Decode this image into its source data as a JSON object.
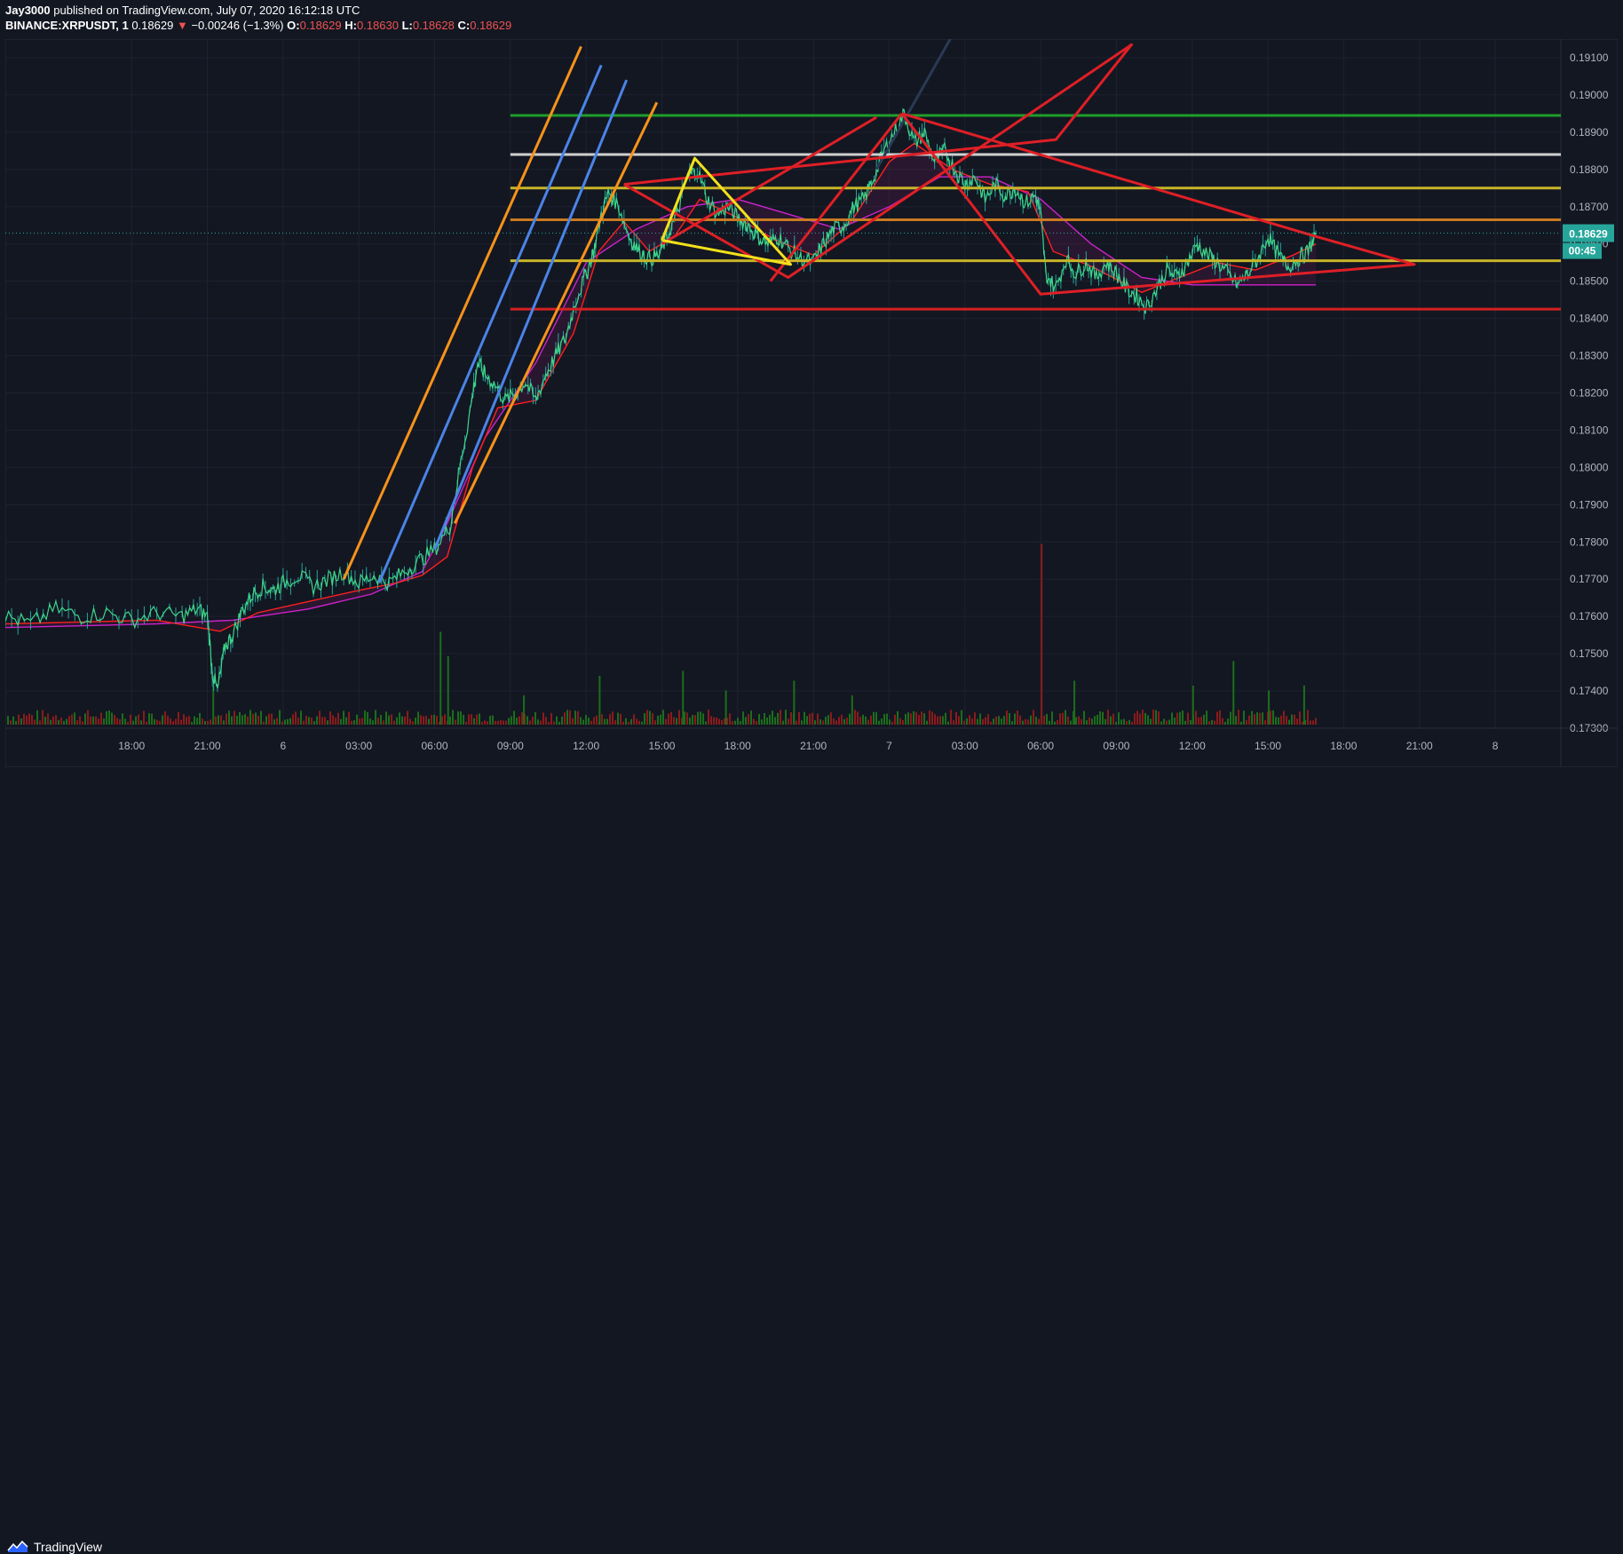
{
  "header": {
    "author": "Jay3000",
    "published": "published on TradingView.com, July 07, 2020 16:12:18 UTC",
    "symbol": "BINANCE:XRPUSDT, 1",
    "last": "0.18629",
    "change_arrow": "▼",
    "change": "−0.00246 (−1.3%)",
    "o_label": "O:",
    "o_value": "0.18629",
    "h_label": "H:",
    "h_value": "0.18630",
    "l_label": "L:",
    "l_value": "0.18628",
    "c_label": "C:",
    "c_value": "0.18629"
  },
  "colors": {
    "background": "#131722",
    "grid": "#1e2230",
    "axis_text": "#b2b5be",
    "candle_up": "#26a69a",
    "price_line": "#3ed68a",
    "ma_fast": "#ff1f1f",
    "ma_slow": "#cc22cc",
    "volume_up": "#1b6e1b",
    "volume_down": "#8b1b1b",
    "last_price_tag": "#26a69a"
  },
  "chart_data": {
    "type": "line",
    "symbol": "XRPUSDT",
    "interval": "1",
    "ylim": [
      0.173,
      0.1915
    ],
    "y_ticks": [
      "0.19100",
      "0.19000",
      "0.18900",
      "0.18800",
      "0.18700",
      "0.18600",
      "0.18500",
      "0.18400",
      "0.18300",
      "0.18200",
      "0.18100",
      "0.18000",
      "0.17900",
      "0.17800",
      "0.17700",
      "0.17600",
      "0.17500",
      "0.17400",
      "0.17300"
    ],
    "x_ticks": [
      {
        "h": -9,
        "label": "18:00"
      },
      {
        "h": -6,
        "label": "21:00"
      },
      {
        "h": -3,
        "label": "6"
      },
      {
        "h": 0,
        "label": "03:00"
      },
      {
        "h": 3,
        "label": "06:00"
      },
      {
        "h": 6,
        "label": "09:00"
      },
      {
        "h": 9,
        "label": "12:00"
      },
      {
        "h": 12,
        "label": "15:00"
      },
      {
        "h": 15,
        "label": "18:00"
      },
      {
        "h": 18,
        "label": "21:00"
      },
      {
        "h": 21,
        "label": "7"
      },
      {
        "h": 24,
        "label": "03:00"
      },
      {
        "h": 27,
        "label": "06:00"
      },
      {
        "h": 30,
        "label": "09:00"
      },
      {
        "h": 33,
        "label": "12:00"
      },
      {
        "h": 36,
        "label": "15:00"
      },
      {
        "h": 39,
        "label": "18:00"
      },
      {
        "h": 42,
        "label": "21:00"
      },
      {
        "h": 45,
        "label": "8"
      }
    ],
    "xlim": [
      -14.0,
      47.6
    ],
    "price_series": [
      [
        -14.0,
        0.176
      ],
      [
        -13.0,
        0.1758
      ],
      [
        -12.0,
        0.1762
      ],
      [
        -11.0,
        0.176
      ],
      [
        -10.0,
        0.1761
      ],
      [
        -9.0,
        0.1759
      ],
      [
        -8.0,
        0.1761
      ],
      [
        -7.0,
        0.176
      ],
      [
        -6.4,
        0.1762
      ],
      [
        -6.0,
        0.176
      ],
      [
        -5.8,
        0.1745
      ],
      [
        -5.6,
        0.174
      ],
      [
        -5.3,
        0.1752
      ],
      [
        -5.0,
        0.1755
      ],
      [
        -4.6,
        0.1762
      ],
      [
        -4.2,
        0.1766
      ],
      [
        -3.8,
        0.1768
      ],
      [
        -3.4,
        0.1767
      ],
      [
        -3.0,
        0.1769
      ],
      [
        -2.4,
        0.1771
      ],
      [
        -1.8,
        0.1768
      ],
      [
        -1.2,
        0.177
      ],
      [
        -0.6,
        0.1772
      ],
      [
        0.0,
        0.1769
      ],
      [
        0.6,
        0.1771
      ],
      [
        1.2,
        0.1769
      ],
      [
        1.8,
        0.1772
      ],
      [
        2.4,
        0.1775
      ],
      [
        3.0,
        0.1778
      ],
      [
        3.6,
        0.1784
      ],
      [
        4.0,
        0.18
      ],
      [
        4.4,
        0.1815
      ],
      [
        4.7,
        0.1828
      ],
      [
        5.0,
        0.1825
      ],
      [
        5.4,
        0.1822
      ],
      [
        5.8,
        0.1818
      ],
      [
        6.2,
        0.182
      ],
      [
        6.6,
        0.1823
      ],
      [
        7.0,
        0.1818
      ],
      [
        7.4,
        0.1825
      ],
      [
        7.8,
        0.183
      ],
      [
        8.2,
        0.1835
      ],
      [
        8.6,
        0.1845
      ],
      [
        9.0,
        0.1852
      ],
      [
        9.3,
        0.1858
      ],
      [
        9.6,
        0.1868
      ],
      [
        9.9,
        0.1874
      ],
      [
        10.3,
        0.187
      ],
      [
        10.7,
        0.1862
      ],
      [
        11.1,
        0.1858
      ],
      [
        11.5,
        0.1856
      ],
      [
        11.9,
        0.1857
      ],
      [
        12.2,
        0.1862
      ],
      [
        12.6,
        0.1868
      ],
      [
        13.0,
        0.1878
      ],
      [
        13.4,
        0.188
      ],
      [
        13.8,
        0.1872
      ],
      [
        14.2,
        0.1868
      ],
      [
        14.6,
        0.187
      ],
      [
        15.0,
        0.1867
      ],
      [
        15.4,
        0.1865
      ],
      [
        15.8,
        0.1862
      ],
      [
        16.2,
        0.186
      ],
      [
        16.6,
        0.1862
      ],
      [
        17.0,
        0.1859
      ],
      [
        17.5,
        0.1856
      ],
      [
        18.0,
        0.1855
      ],
      [
        18.4,
        0.186
      ],
      [
        18.8,
        0.1864
      ],
      [
        19.2,
        0.1865
      ],
      [
        19.6,
        0.187
      ],
      [
        20.0,
        0.1872
      ],
      [
        20.4,
        0.1878
      ],
      [
        20.8,
        0.1885
      ],
      [
        21.2,
        0.189
      ],
      [
        21.6,
        0.1895
      ],
      [
        22.0,
        0.1887
      ],
      [
        22.4,
        0.189
      ],
      [
        22.8,
        0.1882
      ],
      [
        23.2,
        0.1885
      ],
      [
        23.6,
        0.188
      ],
      [
        24.0,
        0.1876
      ],
      [
        24.4,
        0.1878
      ],
      [
        24.8,
        0.1872
      ],
      [
        25.2,
        0.1876
      ],
      [
        25.6,
        0.1873
      ],
      [
        26.0,
        0.1875
      ],
      [
        26.4,
        0.1871
      ],
      [
        26.8,
        0.1873
      ],
      [
        27.0,
        0.1868
      ],
      [
        27.2,
        0.1852
      ],
      [
        27.6,
        0.1848
      ],
      [
        28.0,
        0.1856
      ],
      [
        28.4,
        0.1852
      ],
      [
        28.8,
        0.1855
      ],
      [
        29.2,
        0.1851
      ],
      [
        29.6,
        0.1855
      ],
      [
        30.0,
        0.1852
      ],
      [
        30.4,
        0.1848
      ],
      [
        30.8,
        0.1846
      ],
      [
        31.2,
        0.1843
      ],
      [
        31.6,
        0.1848
      ],
      [
        32.0,
        0.1853
      ],
      [
        32.4,
        0.1851
      ],
      [
        32.8,
        0.1855
      ],
      [
        33.2,
        0.186
      ],
      [
        33.6,
        0.1857
      ],
      [
        34.0,
        0.1855
      ],
      [
        34.4,
        0.1852
      ],
      [
        34.8,
        0.1849
      ],
      [
        35.2,
        0.1852
      ],
      [
        35.6,
        0.1856
      ],
      [
        36.0,
        0.1862
      ],
      [
        36.4,
        0.1857
      ],
      [
        36.8,
        0.1854
      ],
      [
        37.2,
        0.1856
      ],
      [
        37.6,
        0.1858
      ],
      [
        37.9,
        0.1863
      ]
    ],
    "ma_fast_series": [
      [
        -14.0,
        0.1758
      ],
      [
        -8.0,
        0.1759
      ],
      [
        -5.5,
        0.1756
      ],
      [
        -4.0,
        0.1761
      ],
      [
        -2.0,
        0.1764
      ],
      [
        0.0,
        0.1767
      ],
      [
        1.5,
        0.1769
      ],
      [
        2.5,
        0.1771
      ],
      [
        3.5,
        0.1776
      ],
      [
        4.5,
        0.18
      ],
      [
        5.5,
        0.1816
      ],
      [
        7.0,
        0.1818
      ],
      [
        8.5,
        0.1836
      ],
      [
        9.5,
        0.1858
      ],
      [
        10.5,
        0.1866
      ],
      [
        11.5,
        0.1858
      ],
      [
        12.5,
        0.1862
      ],
      [
        13.5,
        0.1872
      ],
      [
        15.0,
        0.1867
      ],
      [
        16.5,
        0.1861
      ],
      [
        18.0,
        0.1857
      ],
      [
        19.5,
        0.1866
      ],
      [
        21.0,
        0.1882
      ],
      [
        22.0,
        0.1887
      ],
      [
        23.5,
        0.188
      ],
      [
        25.0,
        0.1876
      ],
      [
        26.5,
        0.1874
      ],
      [
        27.5,
        0.1858
      ],
      [
        29.0,
        0.1854
      ],
      [
        31.0,
        0.1847
      ],
      [
        32.5,
        0.1851
      ],
      [
        34.0,
        0.1855
      ],
      [
        35.5,
        0.1853
      ],
      [
        37.0,
        0.1857
      ],
      [
        37.9,
        0.186
      ]
    ],
    "ma_slow_series": [
      [
        -14.0,
        0.1757
      ],
      [
        -8.0,
        0.1758
      ],
      [
        -5.0,
        0.1759
      ],
      [
        -2.0,
        0.1762
      ],
      [
        0.5,
        0.1766
      ],
      [
        2.5,
        0.1772
      ],
      [
        3.5,
        0.1785
      ],
      [
        5.0,
        0.1808
      ],
      [
        7.0,
        0.1828
      ],
      [
        9.0,
        0.1855
      ],
      [
        11.0,
        0.1864
      ],
      [
        13.0,
        0.187
      ],
      [
        15.0,
        0.1872
      ],
      [
        17.0,
        0.1868
      ],
      [
        19.0,
        0.1864
      ],
      [
        21.0,
        0.187
      ],
      [
        23.0,
        0.1878
      ],
      [
        25.0,
        0.1878
      ],
      [
        27.0,
        0.1872
      ],
      [
        29.0,
        0.186
      ],
      [
        31.0,
        0.1851
      ],
      [
        33.0,
        0.1849
      ],
      [
        35.0,
        0.1849
      ],
      [
        37.0,
        0.1849
      ],
      [
        37.9,
        0.1849
      ]
    ],
    "horizontal_levels": [
      {
        "price": 0.18945,
        "color": "#1f9e2a"
      },
      {
        "price": 0.1884,
        "color": "#cfcfcf"
      },
      {
        "price": 0.1875,
        "color": "#c8b428"
      },
      {
        "price": 0.18665,
        "color": "#c97a22"
      },
      {
        "price": 0.18555,
        "color": "#c8b428"
      },
      {
        "price": 0.18425,
        "color": "#d42020"
      }
    ],
    "trendlines": [
      {
        "color": "#f7931a",
        "points": [
          [
            -0.6,
            0.177
          ],
          [
            8.8,
            0.1913
          ]
        ]
      },
      {
        "color": "#4a84e8",
        "points": [
          [
            0.8,
            0.1769
          ],
          [
            9.6,
            0.1908
          ]
        ]
      },
      {
        "color": "#4a84e8",
        "points": [
          [
            3.0,
            0.1778
          ],
          [
            10.6,
            0.1904
          ]
        ]
      },
      {
        "color": "#f7931a",
        "points": [
          [
            3.8,
            0.1785
          ],
          [
            11.8,
            0.1898
          ]
        ]
      },
      {
        "color": "#2a3a55",
        "points": [
          [
            20.5,
            0.188
          ],
          [
            23.5,
            0.1916
          ]
        ]
      },
      {
        "color": "#e01f26",
        "points": [
          [
            10.5,
            0.1876
          ],
          [
            27.6,
            0.1888
          ],
          [
            30.6,
            0.19135
          ],
          [
            17.0,
            0.1851
          ],
          [
            10.5,
            0.1876
          ]
        ],
        "closed": false
      },
      {
        "color": "#e01f26",
        "points": [
          [
            12.0,
            0.186
          ],
          [
            20.5,
            0.1894
          ]
        ]
      },
      {
        "color": "#e01f26",
        "points": [
          [
            21.5,
            0.1895
          ],
          [
            16.3,
            0.185
          ]
        ]
      },
      {
        "color": "#e01f26",
        "points": [
          [
            21.5,
            0.1895
          ],
          [
            37.9,
            0.1862
          ],
          [
            41.8,
            0.18545
          ],
          [
            27.0,
            0.18465
          ],
          [
            21.5,
            0.1895
          ]
        ]
      },
      {
        "color": "#f2e11b",
        "points": [
          [
            12.0,
            0.1861
          ],
          [
            13.3,
            0.1883
          ],
          [
            17.1,
            0.18545
          ],
          [
            12.0,
            0.1861
          ]
        ]
      }
    ],
    "last_price_label": "0.18629",
    "countdown_label": "00:45",
    "volume_spikes": [
      [
        -5.8,
        8
      ],
      [
        3.2,
        19
      ],
      [
        3.5,
        14
      ],
      [
        6.5,
        6
      ],
      [
        9.5,
        10
      ],
      [
        12.8,
        11
      ],
      [
        14.5,
        7
      ],
      [
        17.2,
        9
      ],
      [
        19.5,
        6
      ],
      [
        27.0,
        37
      ],
      [
        28.3,
        9
      ],
      [
        33.0,
        8
      ],
      [
        34.6,
        13
      ],
      [
        36.0,
        7
      ],
      [
        37.4,
        8
      ]
    ]
  },
  "footer": {
    "brand": "TradingView",
    "logo_icon": "tradingview-logo-icon"
  }
}
